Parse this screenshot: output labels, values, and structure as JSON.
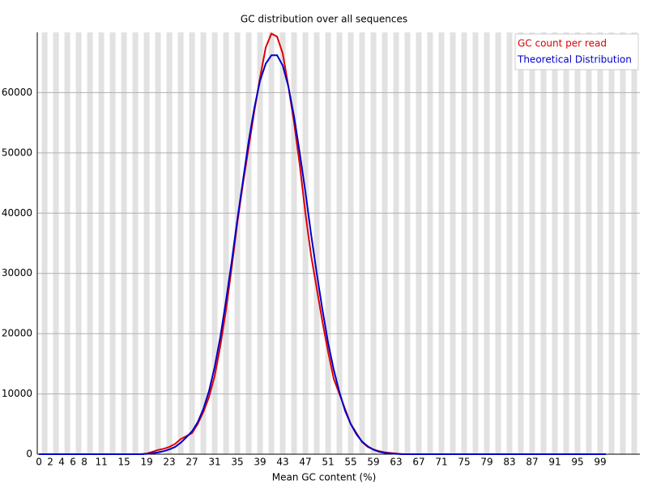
{
  "chart_data": {
    "type": "line",
    "title": "GC distribution over all sequences",
    "x_label": "Mean GC content (%)",
    "x": [
      0,
      1,
      2,
      3,
      4,
      5,
      6,
      7,
      8,
      9,
      10,
      11,
      12,
      13,
      14,
      15,
      16,
      17,
      18,
      19,
      20,
      21,
      22,
      23,
      24,
      25,
      26,
      27,
      28,
      29,
      30,
      31,
      32,
      33,
      34,
      35,
      36,
      37,
      38,
      39,
      40,
      41,
      42,
      43,
      44,
      45,
      46,
      47,
      48,
      49,
      50,
      51,
      52,
      53,
      54,
      55,
      56,
      57,
      58,
      59,
      60,
      61,
      62,
      63,
      64,
      65,
      66,
      67,
      68,
      69,
      70,
      71,
      72,
      73,
      74,
      75,
      76,
      77,
      78,
      79,
      80,
      81,
      82,
      83,
      84,
      85,
      86,
      87,
      88,
      89,
      90,
      91,
      92,
      93,
      94,
      95,
      96,
      97,
      98,
      99,
      100
    ],
    "series": [
      {
        "name": "GC count per read",
        "color": "#dd0000",
        "values": [
          0,
          0,
          0,
          0,
          0,
          0,
          0,
          0,
          0,
          0,
          0,
          0,
          0,
          0,
          0,
          0,
          0,
          0,
          0,
          100,
          400,
          700,
          900,
          1200,
          1700,
          2500,
          3000,
          3500,
          5000,
          7000,
          9500,
          13000,
          18000,
          24000,
          31000,
          38500,
          45000,
          51000,
          57000,
          62500,
          67500,
          69800,
          69300,
          66500,
          61000,
          55000,
          48000,
          40000,
          33000,
          27500,
          22000,
          17000,
          12500,
          10000,
          7500,
          5000,
          3500,
          2000,
          1200,
          800,
          500,
          300,
          200,
          100,
          0,
          0,
          0,
          0,
          0,
          0,
          0,
          0,
          0,
          0,
          0,
          0,
          0,
          0,
          0,
          0,
          0,
          0,
          0,
          0,
          0,
          0,
          0,
          0,
          0,
          0,
          0,
          0,
          0,
          0,
          0,
          0,
          0,
          0,
          0,
          0,
          0
        ]
      },
      {
        "name": "Theoretical Distribution",
        "color": "#0000cc",
        "values": [
          0,
          0,
          0,
          0,
          0,
          0,
          0,
          0,
          0,
          0,
          0,
          0,
          0,
          0,
          0,
          0,
          0,
          0,
          0,
          50,
          150,
          300,
          500,
          800,
          1200,
          1900,
          2800,
          3800,
          5300,
          7500,
          10500,
          14500,
          19500,
          25500,
          32000,
          39000,
          45500,
          52000,
          57500,
          62000,
          64800,
          66200,
          66200,
          64500,
          61000,
          56000,
          50000,
          43500,
          36500,
          30000,
          24000,
          18500,
          14000,
          10300,
          7200,
          5000,
          3300,
          2100,
          1300,
          750,
          400,
          220,
          110,
          50,
          20,
          0,
          0,
          0,
          0,
          0,
          0,
          0,
          0,
          0,
          0,
          0,
          0,
          0,
          0,
          0,
          0,
          0,
          0,
          0,
          0,
          0,
          0,
          0,
          0,
          0,
          0,
          0,
          0,
          0,
          0,
          0,
          0,
          0,
          0,
          0,
          0
        ]
      }
    ],
    "xlim": [
      -0.3,
      106
    ],
    "xticks": [
      0,
      2,
      4,
      6,
      8,
      11,
      15,
      19,
      23,
      27,
      31,
      35,
      39,
      43,
      47,
      51,
      55,
      59,
      63,
      67,
      71,
      75,
      79,
      83,
      87,
      91,
      95,
      99
    ],
    "ylim": [
      0,
      70000
    ],
    "yticks": [
      0,
      10000,
      20000,
      30000,
      40000,
      50000,
      60000
    ],
    "grid": true,
    "legend": "top-right"
  }
}
